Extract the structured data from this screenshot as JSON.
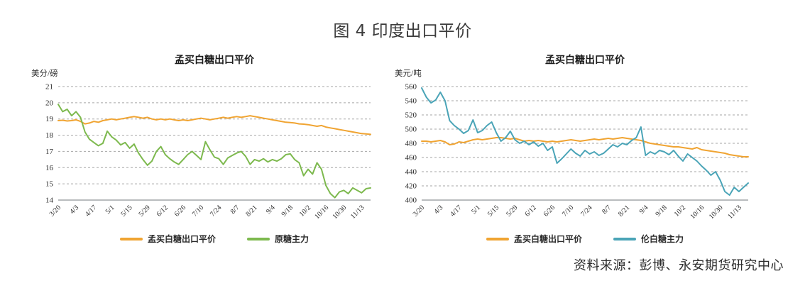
{
  "page": {
    "title": "图 4 印度出口平价",
    "source": "资料来源：彭博、永安期货研究中心"
  },
  "chart_data": [
    {
      "type": "line",
      "title": "孟买白糖出口平价",
      "unit": "美分/磅",
      "y_min": 14,
      "y_max": 21,
      "y_step": 1,
      "grid": "dashed-horizontal",
      "legend_position": "bottom",
      "x_end_index": 17.5,
      "x_labels": [
        "3/20",
        "4/3",
        "4/17",
        "5/1",
        "5/15",
        "5/29",
        "6/12",
        "6/26",
        "7/10",
        "7/24",
        "8/7",
        "8/21",
        "9/4",
        "9/18",
        "10/2",
        "10/16",
        "10/30",
        "11/13"
      ],
      "legend": [
        {
          "label": "孟买白糖出口平价",
          "color": "#F0A432"
        },
        {
          "label": "原糖主力",
          "color": "#7DB94E"
        }
      ],
      "series": [
        {
          "name": "孟买白糖出口平价",
          "color": "#F0A432",
          "values": [
            18.9,
            18.92,
            18.88,
            18.9,
            18.95,
            18.85,
            18.7,
            18.75,
            18.85,
            18.8,
            18.9,
            18.95,
            19.0,
            18.95,
            19.0,
            19.05,
            19.1,
            19.15,
            19.1,
            19.05,
            19.1,
            19.0,
            18.95,
            19.0,
            18.95,
            19.0,
            18.95,
            18.9,
            18.95,
            18.9,
            18.95,
            19.0,
            19.05,
            19.0,
            18.95,
            19.0,
            19.05,
            19.1,
            19.05,
            19.1,
            19.15,
            19.1,
            19.15,
            19.2,
            19.15,
            19.1,
            19.05,
            19.0,
            18.95,
            18.9,
            18.85,
            18.8,
            18.78,
            18.75,
            18.7,
            18.68,
            18.65,
            18.6,
            18.55,
            18.6,
            18.5,
            18.45,
            18.4,
            18.35,
            18.3,
            18.25,
            18.2,
            18.15,
            18.1,
            18.08,
            18.05
          ]
        },
        {
          "name": "原糖主力",
          "color": "#7DB94E",
          "values": [
            19.9,
            19.45,
            19.6,
            19.2,
            19.45,
            19.1,
            18.2,
            17.75,
            17.55,
            17.35,
            17.5,
            18.25,
            17.9,
            17.7,
            17.4,
            17.55,
            17.2,
            17.45,
            16.9,
            16.5,
            16.15,
            16.4,
            17.0,
            17.3,
            16.8,
            16.55,
            16.35,
            16.2,
            16.5,
            16.8,
            17.0,
            16.75,
            16.5,
            17.6,
            17.1,
            16.65,
            16.55,
            16.2,
            16.6,
            16.75,
            16.9,
            17.0,
            16.7,
            16.2,
            16.5,
            16.4,
            16.55,
            16.35,
            16.5,
            16.4,
            16.55,
            16.8,
            16.85,
            16.5,
            16.3,
            15.5,
            15.9,
            15.6,
            16.3,
            15.9,
            14.9,
            14.4,
            14.15,
            14.5,
            14.6,
            14.4,
            14.75,
            14.6,
            14.45,
            14.7,
            14.75
          ]
        }
      ]
    },
    {
      "type": "line",
      "title": "孟买白糖出口平价",
      "unit": "美元/吨",
      "y_min": 400,
      "y_max": 560,
      "y_step": 20,
      "grid": "dashed-horizontal",
      "legend_position": "bottom",
      "x_end_index": 17.5,
      "x_labels": [
        "3/20",
        "4/3",
        "4/17",
        "5/1",
        "5/15",
        "5/29",
        "6/12",
        "6/26",
        "7/10",
        "7/24",
        "8/7",
        "8/21",
        "9/4",
        "9/18",
        "10/2",
        "10/16",
        "10/30",
        "11/13"
      ],
      "legend": [
        {
          "label": "孟买白糖出口平价",
          "color": "#F0A432"
        },
        {
          "label": "伦白糖主力",
          "color": "#4AA4B7"
        }
      ],
      "series": [
        {
          "name": "孟买白糖出口平价",
          "color": "#F0A432",
          "values": [
            483,
            483,
            482,
            483,
            484,
            482,
            478,
            479,
            482,
            481,
            483,
            485,
            486,
            485,
            486,
            487,
            488,
            488,
            487,
            486,
            487,
            485,
            483,
            484,
            483,
            484,
            483,
            482,
            483,
            482,
            483,
            484,
            485,
            484,
            483,
            484,
            485,
            486,
            485,
            486,
            487,
            486,
            487,
            488,
            487,
            486,
            485,
            484,
            482,
            480,
            479,
            478,
            477,
            476,
            475,
            475,
            474,
            473,
            472,
            474,
            471,
            470,
            469,
            468,
            467,
            466,
            464,
            463,
            462,
            461,
            461
          ]
        },
        {
          "name": "伦白糖主力",
          "color": "#4AA4B7",
          "values": [
            558,
            545,
            537,
            541,
            552,
            540,
            512,
            505,
            500,
            494,
            498,
            513,
            495,
            498,
            505,
            510,
            495,
            483,
            488,
            497,
            485,
            480,
            483,
            478,
            482,
            476,
            480,
            470,
            475,
            452,
            458,
            465,
            472,
            466,
            462,
            470,
            465,
            468,
            463,
            466,
            472,
            478,
            475,
            480,
            478,
            484,
            488,
            503,
            463,
            468,
            465,
            470,
            468,
            464,
            470,
            462,
            455,
            465,
            460,
            455,
            448,
            442,
            435,
            440,
            428,
            412,
            407,
            418,
            412,
            418,
            424
          ]
        }
      ]
    }
  ]
}
